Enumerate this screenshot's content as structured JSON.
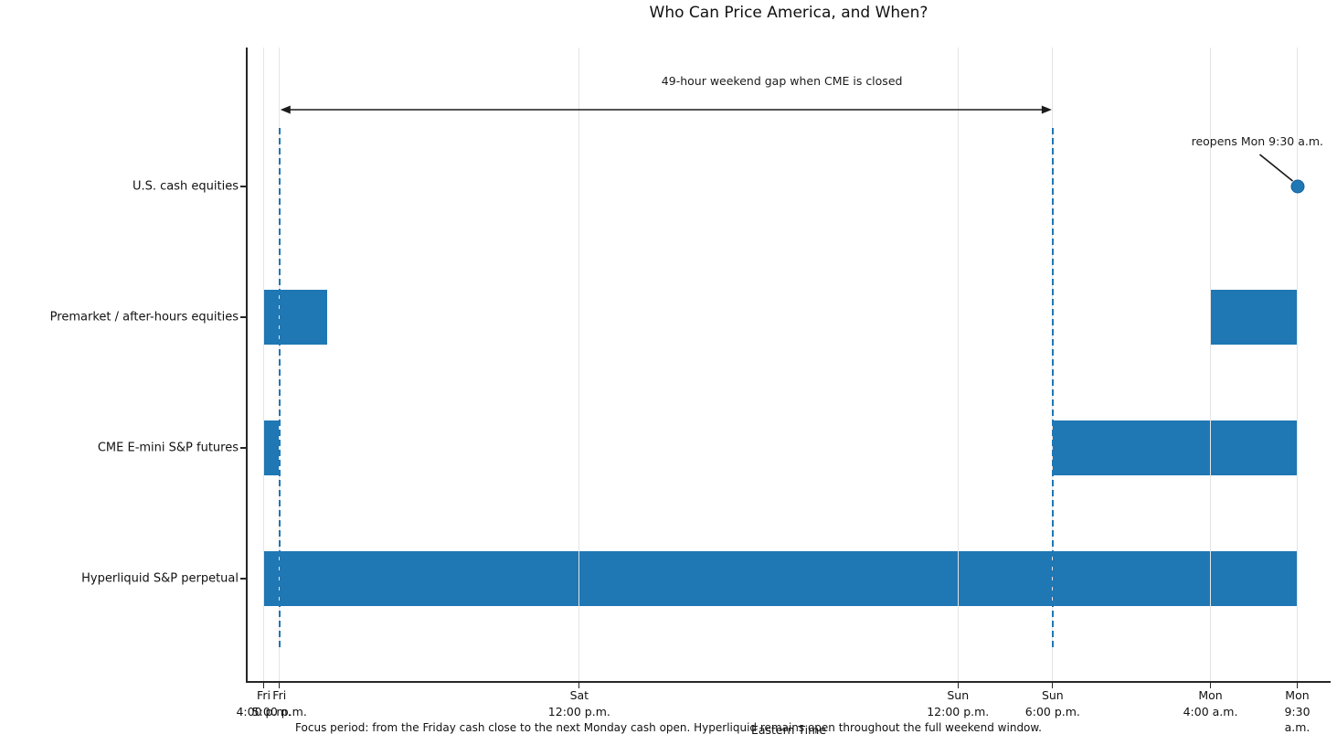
{
  "chart_data": {
    "type": "bar",
    "subtype": "horizontal-timeline-market-hours",
    "title": "Who Can Price America, and When?",
    "xlabel": "Eastern Time",
    "caption": "Focus period: from the Friday cash close to the next Monday cash open. Hyperliquid remains open throughout the full weekend window.",
    "x_unit": "hours after Fri 4:00 p.m. ET",
    "x_axis_range_hours": [
      -1.1,
      66.7
    ],
    "grid": "vertical-only",
    "rows": [
      {
        "label": "U.S. cash equities",
        "open_intervals_hours": [],
        "open_times_text": [
          "closed for the whole focus window"
        ],
        "marker": {
          "t_hours": 65.5,
          "time": "Mon 9:30 a.m."
        }
      },
      {
        "label": "Premarket / after-hours equities",
        "open_intervals_hours": [
          [
            0,
            4
          ],
          [
            60,
            65.5
          ]
        ],
        "open_times_text": [
          "Fri 4:00-8:00 p.m.",
          "Mon 4:00-9:30 a.m."
        ]
      },
      {
        "label": "CME E-mini S&P futures",
        "open_intervals_hours": [
          [
            0,
            1
          ],
          [
            50,
            65.5
          ]
        ],
        "open_times_text": [
          "Fri 4:00-5:00 p.m.",
          "Sun 6:00 p.m.-Mon 9:30 a.m."
        ]
      },
      {
        "label": "Hyperliquid S&P perpetual",
        "open_intervals_hours": [
          [
            0,
            65.5
          ]
        ],
        "open_times_text": [
          "open continuously Fri 4:00 p.m.-Mon 9:30 a.m."
        ]
      }
    ],
    "x_ticks": [
      {
        "t_hours": 0,
        "label": "Fri\n4:00 p.m."
      },
      {
        "t_hours": 1,
        "label": "Fri\n5:00 p.m."
      },
      {
        "t_hours": 20,
        "label": "Sat\n12:00 p.m."
      },
      {
        "t_hours": 44,
        "label": "Sun\n12:00 p.m."
      },
      {
        "t_hours": 50,
        "label": "Sun\n6:00 p.m."
      },
      {
        "t_hours": 60,
        "label": "Mon\n4:00 a.m."
      },
      {
        "t_hours": 65.5,
        "label": "Mon\n9:30 a.m."
      }
    ],
    "dashed_vlines_hours": [
      1,
      50
    ],
    "annotations": {
      "gap": {
        "text": "49-hour weekend gap when CME is closed",
        "from_t_hours": 1,
        "to_t_hours": 50
      },
      "reopen": {
        "text": "reopens Mon 9:30 a.m.",
        "t_hours": 65.5,
        "row": "U.S. cash equities"
      }
    },
    "colors": {
      "bar": "#1f77b4",
      "dashed_line": "#1f77b4",
      "marker": "#1f77b4",
      "grid": "#e4e4e4",
      "text": "#1b1b1b"
    }
  }
}
